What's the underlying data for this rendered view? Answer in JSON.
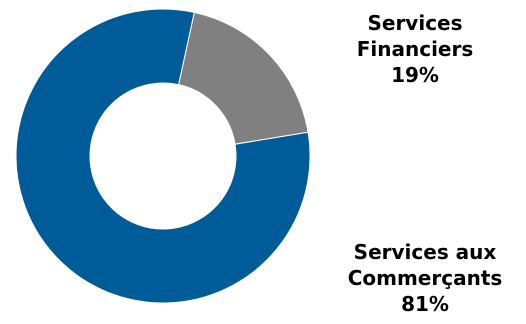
{
  "chart_data": {
    "type": "pie",
    "donut": true,
    "categories": [
      "Services Financiers",
      "Services aux Commerçants"
    ],
    "values": [
      19,
      81
    ],
    "unit": "%",
    "colors": [
      "#808080",
      "#005b99"
    ],
    "legend": "none",
    "labels": [
      {
        "line1": "Services",
        "line2": "Financiers",
        "percent": "19%"
      },
      {
        "line1": "Services aux",
        "line2": "Commerçants",
        "percent": "81%"
      }
    ]
  }
}
